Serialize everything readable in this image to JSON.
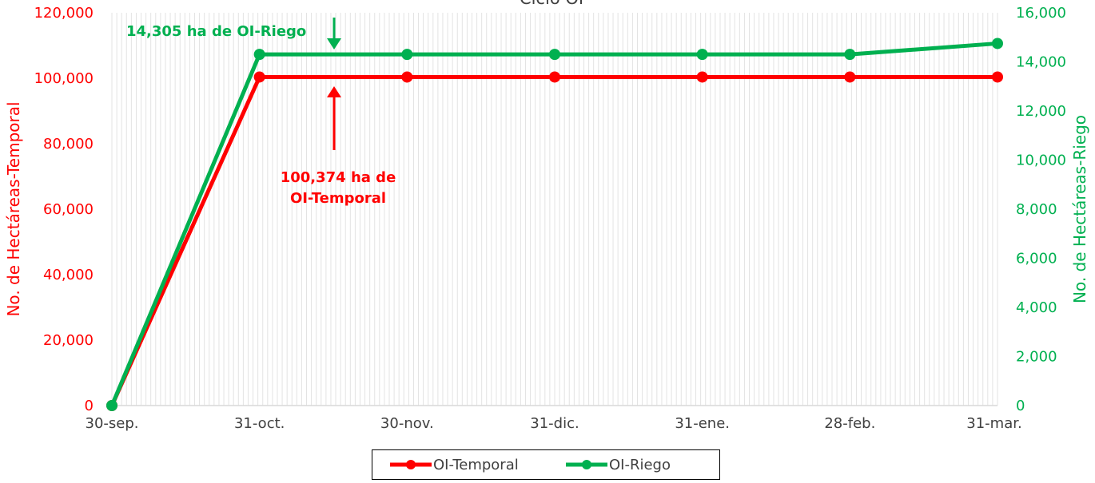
{
  "chart_data": {
    "type": "line",
    "title": "Ciclo OI",
    "x": [
      "30-sep.",
      "31-oct.",
      "30-nov.",
      "31-dic.",
      "31-ene.",
      "28-feb.",
      "31-mar."
    ],
    "ylabel_left": "No. de Hectáreas-Temporal",
    "ylabel_right": "No. de Hectáreas-Riego",
    "ylim_left": [
      0,
      120000
    ],
    "ylim_right": [
      0,
      16000
    ],
    "yticks_left": [
      "0",
      "20,000",
      "40,000",
      "60,000",
      "80,000",
      "100,000",
      "120,000"
    ],
    "yticks_right": [
      "0",
      "2,000",
      "4,000",
      "6,000",
      "8,000",
      "10,000",
      "12,000",
      "14,000",
      "16,000"
    ],
    "grid": "vertical",
    "legend_position": "bottom",
    "series": [
      {
        "name": "OI-Temporal",
        "axis": "left",
        "color": "#ff0000",
        "values": [
          0,
          100374,
          100374,
          100374,
          100374,
          100374,
          100374
        ]
      },
      {
        "name": "OI-Riego",
        "axis": "right",
        "color": "#00b050",
        "values": [
          0,
          14305,
          14305,
          14305,
          14305,
          14305,
          14750
        ]
      }
    ],
    "annotations": [
      {
        "key": "riego",
        "text_lines": [
          "14,305 ha de OI-Riego"
        ],
        "color": "#00b050"
      },
      {
        "key": "temporal",
        "text_lines": [
          "100,374 ha de",
          "OI-Temporal"
        ],
        "color": "#ff0000"
      }
    ]
  }
}
